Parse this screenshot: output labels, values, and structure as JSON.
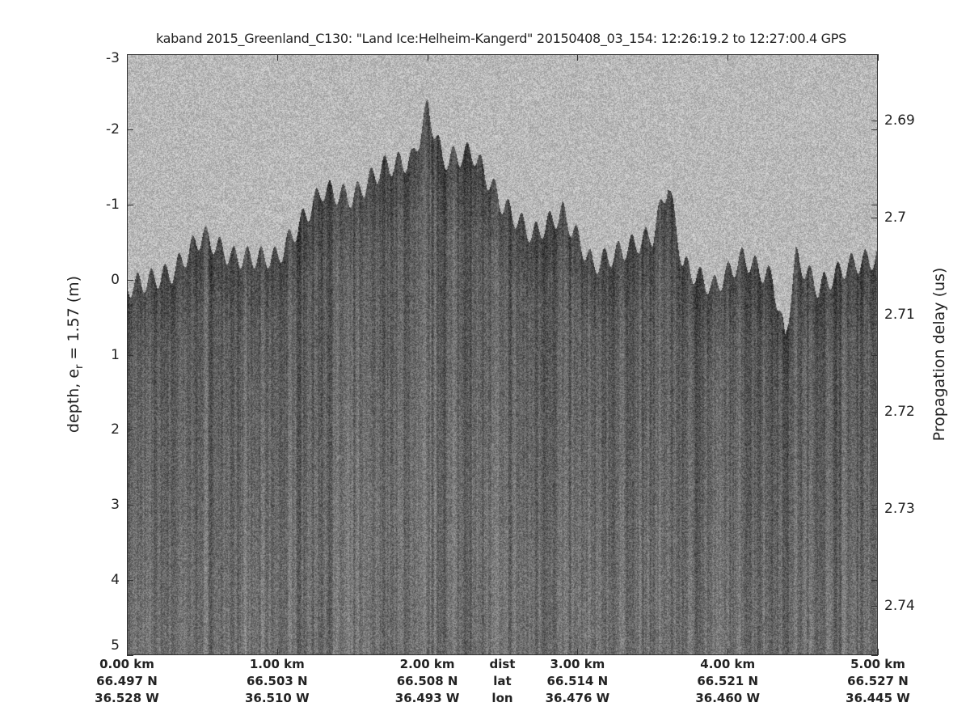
{
  "chart_data": {
    "type": "heatmap",
    "title": "kaband 2015_Greenland_C130: \"Land Ice:Helheim-Kangerd\"  20150408_03_154: 12:26:19.2 to 12:27:00.4 GPS",
    "ylabel": "depth, e_r = 1.57 (m)",
    "ylabel_main": "depth, e",
    "ylabel_sub": "r",
    "ylabel_tail": " = 1.57 (m)",
    "y2label": "Propagation delay (us)",
    "ylim": [
      -3,
      5
    ],
    "yticks": [
      "-3",
      "-2",
      "-1",
      "0",
      "1",
      "2",
      "3",
      "4",
      "5"
    ],
    "y2lim": [
      2.6832,
      2.7451
    ],
    "y2ticks": [
      "2.69",
      "2.7",
      "2.71",
      "2.72",
      "2.73",
      "2.74"
    ],
    "xlim_km": [
      0,
      5
    ],
    "colormap": "gray",
    "x_rows": {
      "dist": {
        "label": "dist",
        "ticks": [
          "0.00 km",
          "1.00 km",
          "2.00 km",
          "3.00 km",
          "4.00 km",
          "5.00 km"
        ]
      },
      "lat": {
        "label": "lat",
        "ticks": [
          "66.497 N",
          "66.503 N",
          "66.508 N",
          "66.514 N",
          "66.521 N",
          "66.527 N"
        ]
      },
      "lon": {
        "label": "lon",
        "ticks": [
          "36.528 W",
          "36.510 W",
          "36.493 W",
          "36.476 W",
          "36.460 W",
          "36.445 W"
        ]
      }
    },
    "surface_depth_m": {
      "x_km": [
        0,
        0.3,
        0.5,
        0.7,
        1.0,
        1.3,
        1.5,
        1.7,
        1.9,
        2.0,
        2.1,
        2.3,
        2.5,
        2.7,
        2.9,
        3.1,
        3.3,
        3.5,
        3.6,
        3.7,
        3.9,
        4.1,
        4.3,
        4.38,
        4.45,
        4.6,
        4.8,
        5.0
      ],
      "y_m": [
        0.1,
        -0.1,
        -0.6,
        -0.3,
        -0.3,
        -1.2,
        -1.1,
        -1.5,
        -1.6,
        -2.3,
        -1.6,
        -1.7,
        -1.0,
        -0.6,
        -0.9,
        -0.2,
        -0.4,
        -0.6,
        -1.3,
        -0.2,
        0.1,
        -0.3,
        0.0,
        0.8,
        -0.3,
        0.1,
        -0.2,
        -0.3
      ]
    }
  }
}
